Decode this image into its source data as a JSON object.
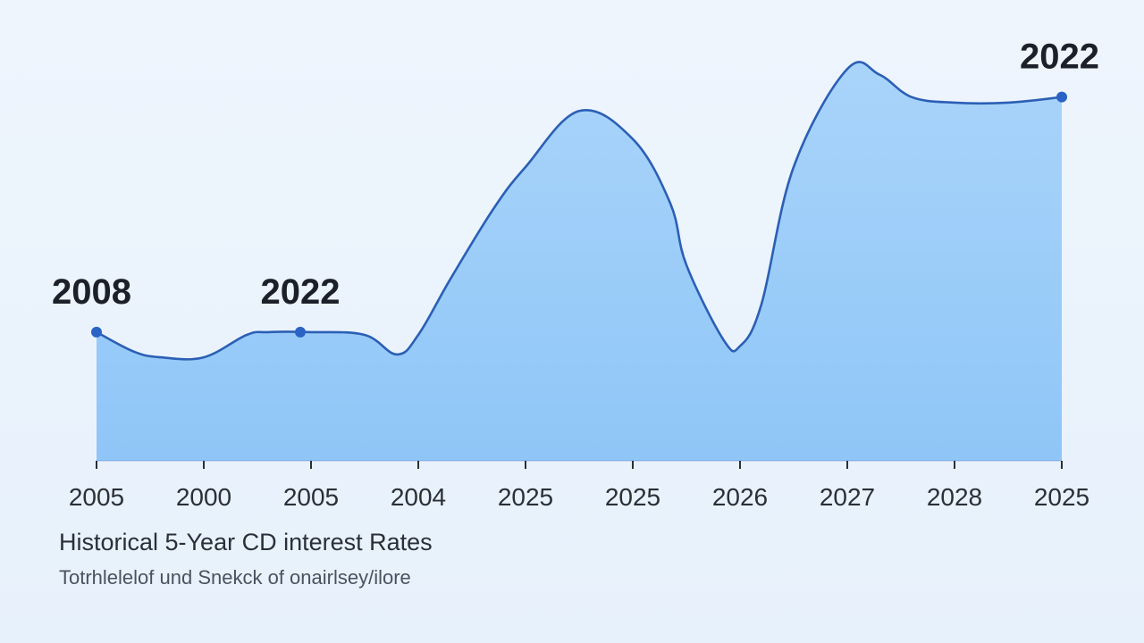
{
  "chart_data": {
    "type": "area",
    "title": "Historical 5-Year CD interest Rates",
    "subtitle": "Totrhlelelof und Snekck of onairlsey/ilore",
    "tick_labels": [
      "2005",
      "2000",
      "2005",
      "2004",
      "2025",
      "2025",
      "2026",
      "2027",
      "2028",
      "2025"
    ],
    "x": [
      0,
      0.35,
      0.6,
      1,
      1.4,
      1.6,
      2,
      2.5,
      2.8,
      3,
      3.3,
      3.7,
      4,
      4.5,
      5,
      5.35,
      5.5,
      5.85,
      6,
      6.2,
      6.5,
      7,
      7.3,
      7.6,
      8,
      8.5,
      9
    ],
    "series": [
      {
        "values": [
          4.6,
          3.9,
          3.7,
          3.7,
          4.5,
          4.6,
          4.6,
          4.5,
          3.8,
          4.5,
          6.5,
          9.0,
          10.5,
          12.5,
          11.5,
          9.2,
          7.0,
          4.3,
          4.1,
          5.6,
          10.5,
          14.0,
          13.8,
          13.0,
          12.8,
          12.8,
          13.0
        ]
      }
    ],
    "annotations": [
      {
        "x": 0,
        "y": 4.6,
        "label": "2008"
      },
      {
        "x": 1.9,
        "y": 4.6,
        "label": "2022"
      },
      {
        "x": 9,
        "y": 13.0,
        "label": "2022"
      }
    ],
    "ylim": [
      0,
      15
    ],
    "grid": false,
    "legend": "none",
    "colors": {
      "line": "#2b5fb5",
      "fill": "#8fc6f7",
      "fill_top": "#a9d4fa",
      "marker": "#2a63c4",
      "axis": "#2b2f36"
    }
  }
}
